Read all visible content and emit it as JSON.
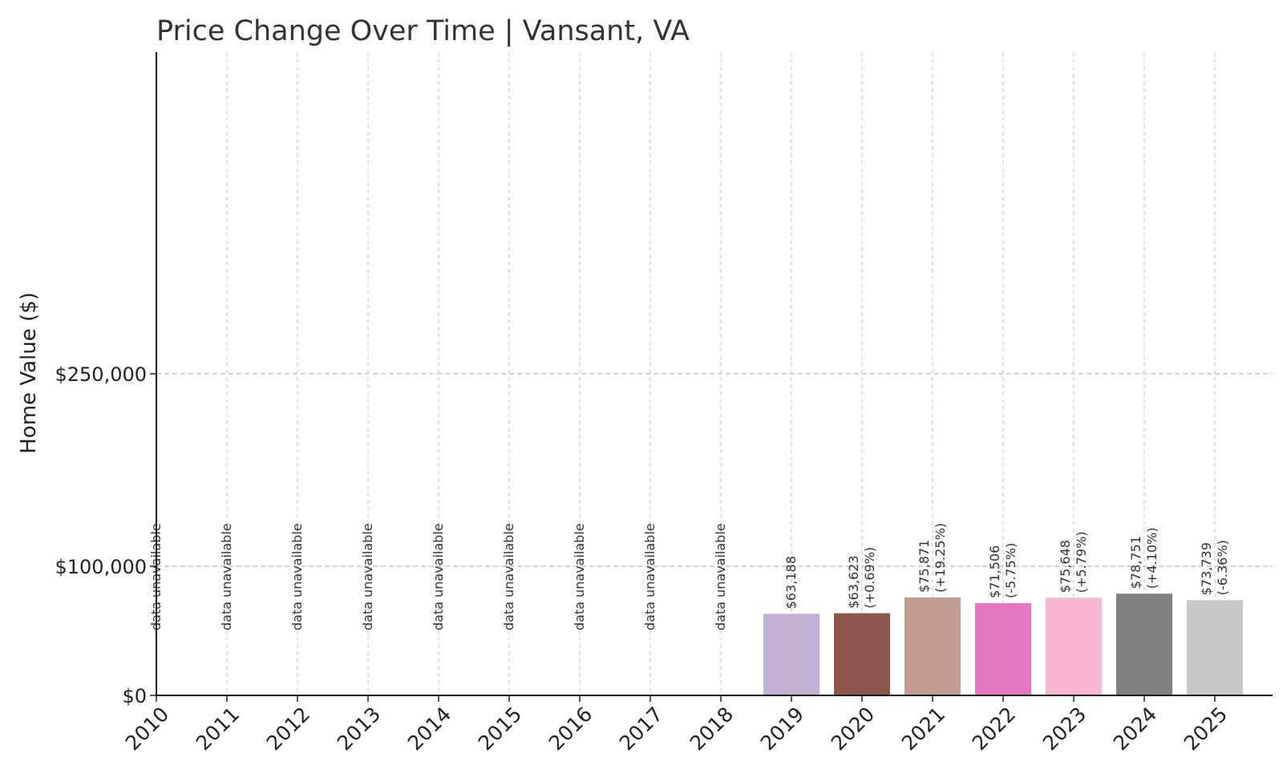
{
  "chart_data": {
    "type": "bar",
    "title": "Price Change Over Time | Vansant, VA",
    "ylabel": "Home Value ($)",
    "xlabel": "",
    "ylim": [
      0,
      500000
    ],
    "yticks": [
      {
        "value": 0,
        "label": "$0"
      },
      {
        "value": 100000,
        "label": "$100,000"
      },
      {
        "value": 250000,
        "label": "$250,000"
      }
    ],
    "grid": true,
    "categories": [
      "2010",
      "2011",
      "2012",
      "2013",
      "2014",
      "2015",
      "2016",
      "2017",
      "2018",
      "2019",
      "2020",
      "2021",
      "2022",
      "2023",
      "2024",
      "2025"
    ],
    "values": [
      null,
      null,
      null,
      null,
      null,
      null,
      null,
      null,
      null,
      63188,
      63623,
      75871,
      71506,
      75648,
      78751,
      73739
    ],
    "value_labels": [
      "",
      "",
      "",
      "",
      "",
      "",
      "",
      "",
      "",
      "$63,188",
      "$63,623",
      "$75,871",
      "$71,506",
      "$75,648",
      "$78,751",
      "$73,739"
    ],
    "change_labels": [
      "",
      "",
      "",
      "",
      "",
      "",
      "",
      "",
      "",
      "",
      "(+0.69%)",
      "(+19.25%)",
      "(-5.75%)",
      "(+5.79%)",
      "(+4.10%)",
      "(-6.36%)"
    ],
    "unavailable_label": "data unavailable",
    "colors": [
      "#1f77b4",
      "#ff7f0e",
      "#2ca02c",
      "#d62728",
      "#9467bd",
      "#8c564b",
      "#e377c2",
      "#7f7f7f",
      "#bcbd22",
      "#c5b0d5",
      "#8c564b",
      "#c49c94",
      "#e377c2",
      "#f7b6d2",
      "#7f7f7f",
      "#c7c7c7"
    ]
  }
}
